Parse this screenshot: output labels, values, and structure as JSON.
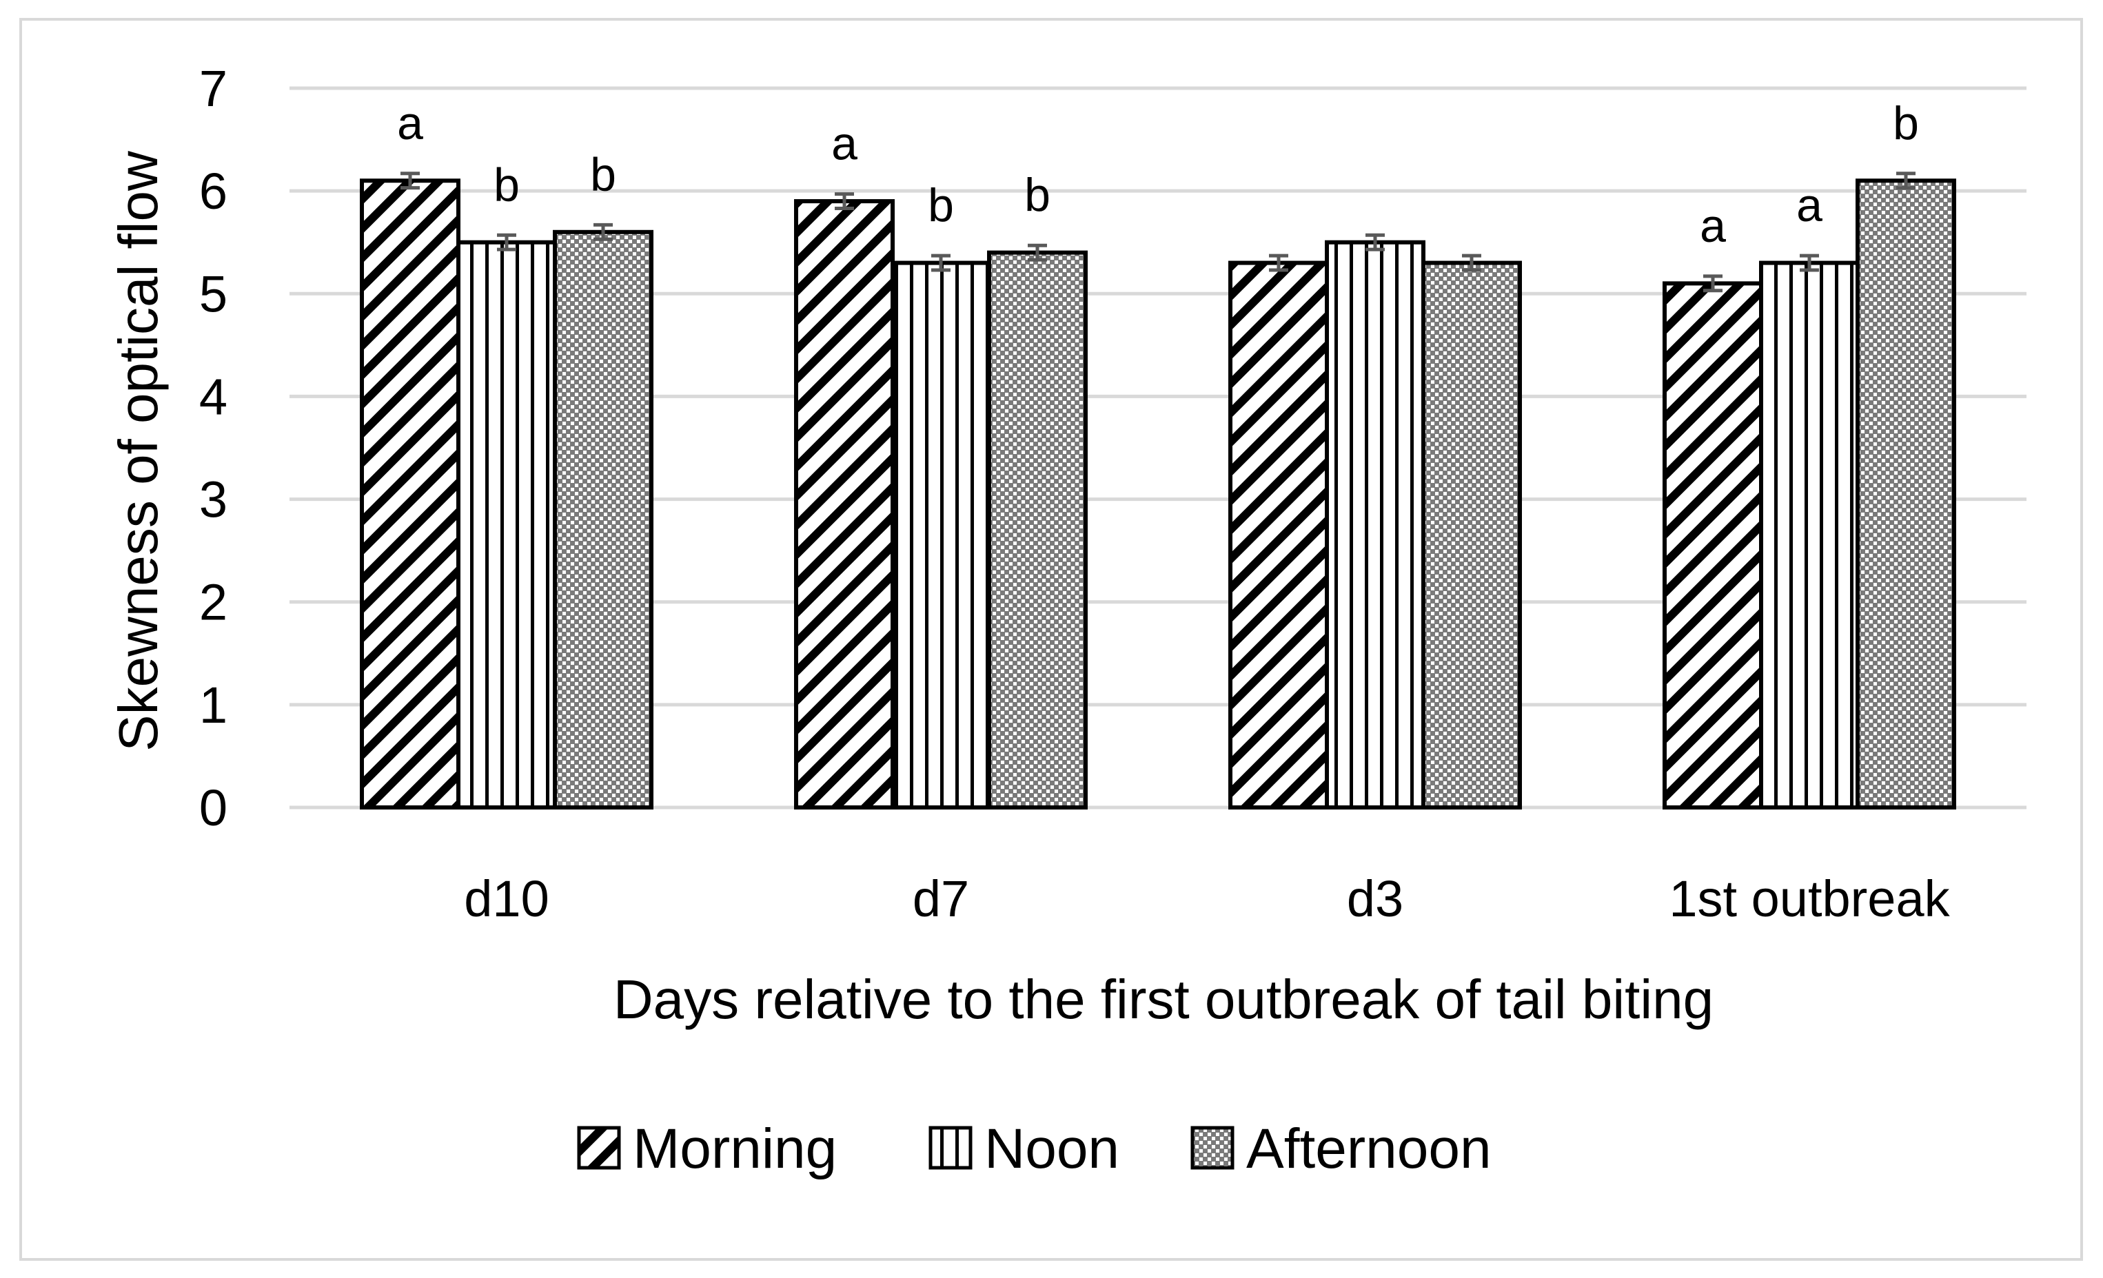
{
  "chart_data": {
    "type": "bar",
    "xlabel": "Days relative to the first outbreak of tail biting",
    "ylabel": "Skewness of optical flow",
    "ylim": [
      0,
      7
    ],
    "yticks": [
      "0",
      "1",
      "2",
      "3",
      "4",
      "5",
      "6",
      "7"
    ],
    "grid": true,
    "legend_position": "bottom",
    "categories": [
      "d10",
      "d7",
      "d3",
      "1st outbreak"
    ],
    "series": [
      {
        "name": "Morning",
        "pattern": "diagonal-hatch",
        "values": [
          6.1,
          5.9,
          5.3,
          5.1
        ],
        "errors": [
          0.07,
          0.07,
          0.07,
          0.07
        ],
        "letters": [
          "a",
          "a",
          "",
          "a"
        ]
      },
      {
        "name": "Noon",
        "pattern": "vertical-lines",
        "values": [
          5.5,
          5.3,
          5.5,
          5.3
        ],
        "errors": [
          0.07,
          0.07,
          0.07,
          0.07
        ],
        "letters": [
          "b",
          "b",
          "",
          "a"
        ]
      },
      {
        "name": "Afternoon",
        "pattern": "dots",
        "values": [
          5.6,
          5.4,
          5.3,
          6.1
        ],
        "errors": [
          0.07,
          0.07,
          0.07,
          0.07
        ],
        "letters": [
          "b",
          "b",
          "",
          "b"
        ]
      }
    ],
    "colors": {
      "bar_stroke": "#000000",
      "grid": "#d9d9d9",
      "error_bar": "#595959"
    }
  }
}
